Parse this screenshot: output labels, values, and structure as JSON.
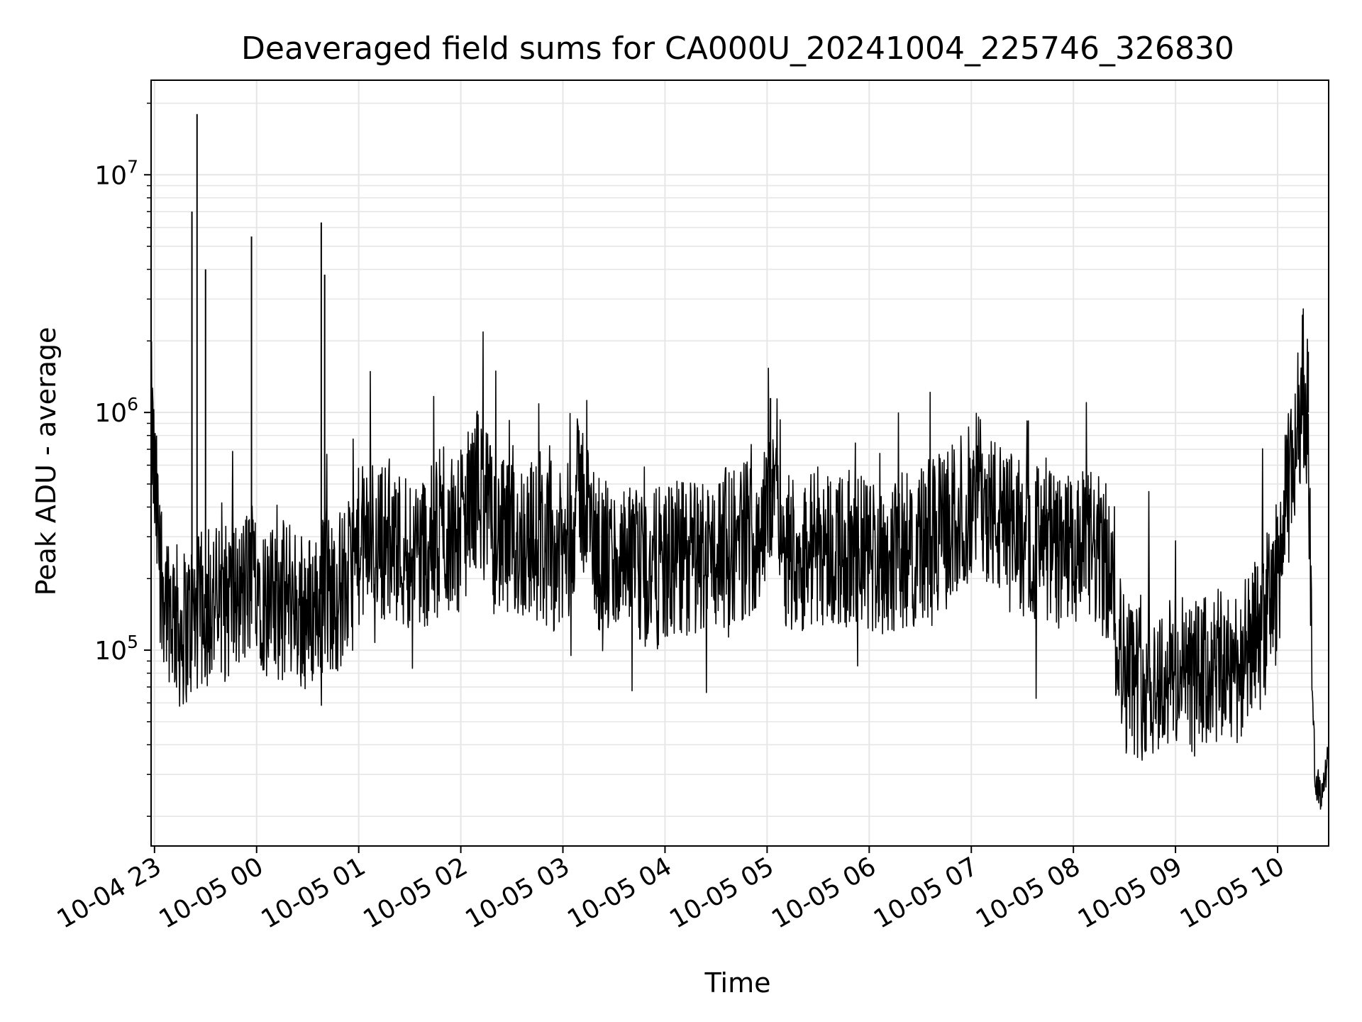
{
  "chart_data": {
    "type": "line",
    "title": "Deaveraged field sums for CA000U_20241004_225746_326830",
    "xlabel": "Time",
    "ylabel": "Peak ADU - average",
    "yscale": "log",
    "ylim": [
      15000,
      25000000
    ],
    "xlim": [
      "2024-10-04 22:58",
      "2024-10-05 10:30"
    ],
    "grid": true,
    "grid_color": "#e6e6e6",
    "line_color": "#000000",
    "x_ticks": [
      "10-04 23",
      "10-05 00",
      "10-05 01",
      "10-05 02",
      "10-05 03",
      "10-05 04",
      "10-05 05",
      "10-05 06",
      "10-05 07",
      "10-05 08",
      "10-05 09",
      "10-05 10"
    ],
    "y_ticks": [
      {
        "value": 100000,
        "base": "10",
        "exp": "5"
      },
      {
        "value": 1000000,
        "base": "10",
        "exp": "6"
      },
      {
        "value": 10000000,
        "base": "10",
        "exp": "7"
      }
    ],
    "series": [
      {
        "x": [
          "2024-10-04 22:58",
          "2024-10-04 23:00",
          "2024-10-04 23:03",
          "2024-10-04 23:06",
          "2024-10-04 23:10",
          "2024-10-04 23:15",
          "2024-10-04 23:20",
          "2024-10-04 23:25",
          "2024-10-04 23:30",
          "2024-10-04 23:35",
          "2024-10-04 23:40",
          "2024-10-04 23:45",
          "2024-10-04 23:50",
          "2024-10-04 23:55",
          "2024-10-05 00:00",
          "2024-10-05 00:05",
          "2024-10-05 00:10",
          "2024-10-05 00:15",
          "2024-10-05 00:20",
          "2024-10-05 00:25",
          "2024-10-05 00:30",
          "2024-10-05 00:35",
          "2024-10-05 00:40",
          "2024-10-05 00:45",
          "2024-10-05 00:50",
          "2024-10-05 00:55",
          "2024-10-05 01:00",
          "2024-10-05 01:10",
          "2024-10-05 01:20",
          "2024-10-05 01:30",
          "2024-10-05 01:40",
          "2024-10-05 01:50",
          "2024-10-05 02:00",
          "2024-10-05 02:10",
          "2024-10-05 02:15",
          "2024-10-05 02:20",
          "2024-10-05 02:30",
          "2024-10-05 02:40",
          "2024-10-05 02:50",
          "2024-10-05 03:00",
          "2024-10-05 03:05",
          "2024-10-05 03:10",
          "2024-10-05 03:20",
          "2024-10-05 03:30",
          "2024-10-05 03:40",
          "2024-10-05 03:50",
          "2024-10-05 04:00",
          "2024-10-05 04:10",
          "2024-10-05 04:20",
          "2024-10-05 04:30",
          "2024-10-05 04:40",
          "2024-10-05 04:50",
          "2024-10-05 05:00",
          "2024-10-05 05:05",
          "2024-10-05 05:10",
          "2024-10-05 05:20",
          "2024-10-05 05:30",
          "2024-10-05 05:40",
          "2024-10-05 05:50",
          "2024-10-05 06:00",
          "2024-10-05 06:10",
          "2024-10-05 06:20",
          "2024-10-05 06:30",
          "2024-10-05 06:40",
          "2024-10-05 06:50",
          "2024-10-05 07:00",
          "2024-10-05 07:05",
          "2024-10-05 07:10",
          "2024-10-05 07:20",
          "2024-10-05 07:30",
          "2024-10-05 07:40",
          "2024-10-05 07:50",
          "2024-10-05 08:00",
          "2024-10-05 08:10",
          "2024-10-05 08:20",
          "2024-10-05 08:30",
          "2024-10-05 08:40",
          "2024-10-05 08:50",
          "2024-10-05 09:00",
          "2024-10-05 09:10",
          "2024-10-05 09:20",
          "2024-10-05 09:30",
          "2024-10-05 09:40",
          "2024-10-05 09:50",
          "2024-10-05 10:00",
          "2024-10-05 10:05",
          "2024-10-05 10:10",
          "2024-10-05 10:15",
          "2024-10-05 10:18",
          "2024-10-05 10:20",
          "2024-10-05 10:22",
          "2024-10-05 10:25",
          "2024-10-05 10:30"
        ],
        "y": [
          1000000,
          500000,
          250000,
          180000,
          150000,
          120000,
          130000,
          140000,
          150000,
          160000,
          150000,
          170000,
          160000,
          190000,
          220000,
          160000,
          150000,
          160000,
          170000,
          150000,
          140000,
          160000,
          180000,
          170000,
          180000,
          200000,
          270000,
          300000,
          280000,
          260000,
          270000,
          300000,
          320000,
          500000,
          400000,
          300000,
          280000,
          300000,
          270000,
          250000,
          320000,
          500000,
          250000,
          230000,
          220000,
          210000,
          230000,
          240000,
          250000,
          260000,
          280000,
          300000,
          350000,
          700000,
          280000,
          250000,
          280000,
          270000,
          260000,
          250000,
          250000,
          260000,
          280000,
          300000,
          350000,
          420000,
          500000,
          400000,
          320000,
          300000,
          280000,
          260000,
          250000,
          270000,
          230000,
          80000,
          75000,
          75000,
          80000,
          75000,
          80000,
          85000,
          90000,
          120000,
          200000,
          400000,
          700000,
          1300000,
          1000000,
          80000,
          30000,
          25000,
          35000
        ]
      }
    ],
    "spikes": [
      {
        "x": "2024-10-04 23:22",
        "y": 7000000
      },
      {
        "x": "2024-10-04 23:25",
        "y": 18000000
      },
      {
        "x": "2024-10-04 23:30",
        "y": 4000000
      },
      {
        "x": "2024-10-04 23:57",
        "y": 5500000
      },
      {
        "x": "2024-10-05 00:38",
        "y": 6300000
      },
      {
        "x": "2024-10-05 00:40",
        "y": 3800000
      },
      {
        "x": "2024-10-05 05:02",
        "y": 1150000
      },
      {
        "x": "2024-10-05 10:18",
        "y": 1800000
      }
    ]
  }
}
